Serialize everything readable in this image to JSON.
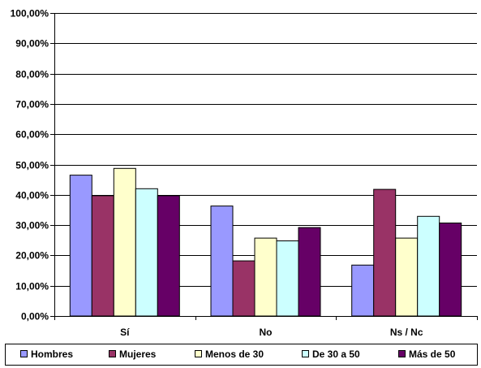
{
  "chart_data": {
    "type": "bar",
    "categories": [
      "Sí",
      "No",
      "Ns / Nc"
    ],
    "ylim": [
      0,
      100
    ],
    "ytick_values": [
      0,
      10,
      20,
      30,
      40,
      50,
      60,
      70,
      80,
      90,
      100
    ],
    "ytick_labels": [
      "0,00%",
      "10,00%",
      "20,00%",
      "30,00%",
      "40,00%",
      "50,00%",
      "60,00%",
      "70,00%",
      "80,00%",
      "90,00%",
      "100,00%"
    ],
    "grid": true,
    "legend_position": "bottom",
    "series": [
      {
        "name": "Hombres",
        "color": "#9999ff",
        "values": [
          46.5,
          36.3,
          16.8
        ]
      },
      {
        "name": "Mujeres",
        "color": "#993366",
        "values": [
          39.7,
          18.2,
          41.8
        ]
      },
      {
        "name": "Menos de 30",
        "color": "#ffffcc",
        "values": [
          48.7,
          25.7,
          25.7
        ]
      },
      {
        "name": "De 30 a 50",
        "color": "#ccffff",
        "values": [
          42.0,
          24.8,
          32.9
        ]
      },
      {
        "name": "Más de 50",
        "color": "#660066",
        "values": [
          39.7,
          29.2,
          30.7
        ]
      }
    ]
  }
}
